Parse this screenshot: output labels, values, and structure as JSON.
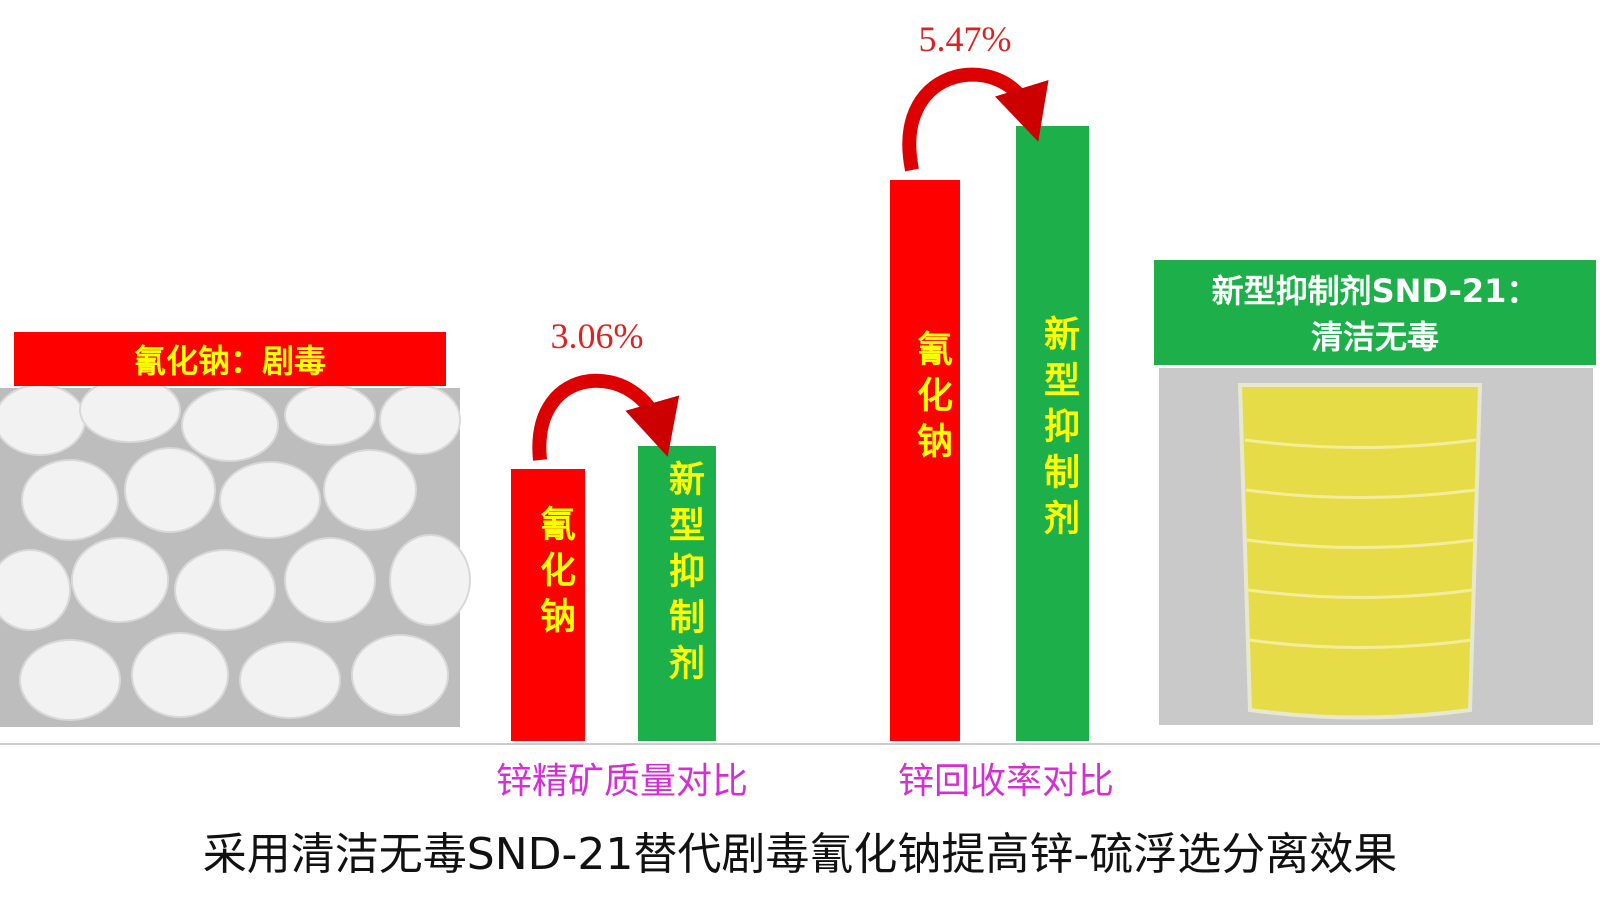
{
  "left_panel": {
    "label": "氰化钠：剧毒"
  },
  "groups": [
    {
      "change": "3.06%",
      "caption": "锌精矿质量对比",
      "bars": [
        "氰化钠",
        "新型抑制剂"
      ]
    },
    {
      "change": "5.47%",
      "caption": "锌回收率对比",
      "bars": [
        "氰化钠",
        "新型抑制剂"
      ]
    }
  ],
  "right_panel": {
    "label_lines": [
      "新型抑制剂SND-21：",
      "清洁无毒"
    ]
  },
  "footer": {
    "title": "采用清洁无毒SND-21替代剧毒氰化钠提高锌-硫浮选分离效果"
  }
}
